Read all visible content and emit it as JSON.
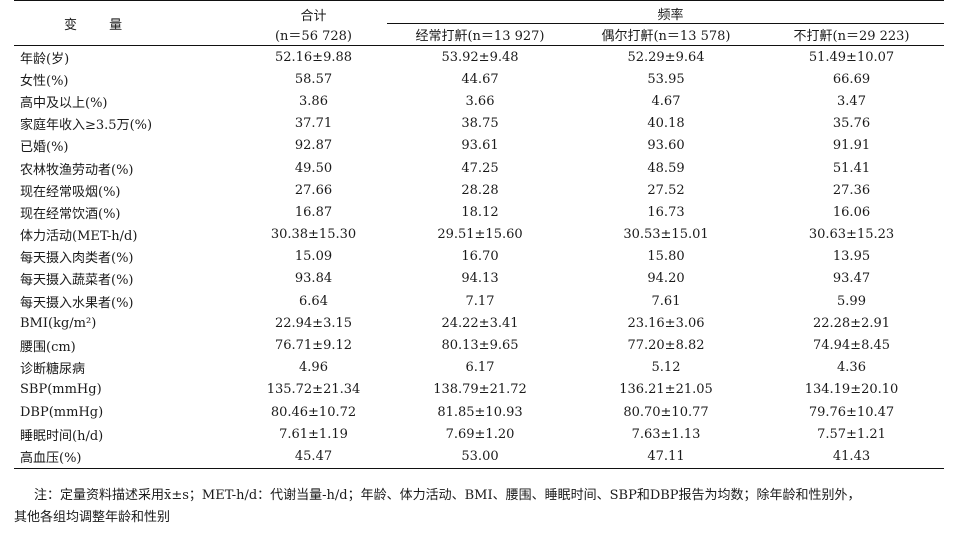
{
  "header": {
    "variable": "变 量",
    "total_title": "合计",
    "total_n": "(n＝56 728)",
    "frequency": "频率",
    "groups": [
      "经常打鼾(n＝13 927)",
      "偶尔打鼾(n＝13 578)",
      "不打鼾(n＝29 223)"
    ]
  },
  "rows": [
    {
      "label": "年龄(岁)",
      "values": [
        "52.16±9.88",
        "53.92±9.48",
        "52.29±9.64",
        "51.49±10.07"
      ]
    },
    {
      "label": "女性(%)",
      "values": [
        "58.57",
        "44.67",
        "53.95",
        "66.69"
      ]
    },
    {
      "label": "高中及以上(%)",
      "values": [
        "3.86",
        "3.66",
        "4.67",
        "3.47"
      ]
    },
    {
      "label": "家庭年收入≥3.5万(%)",
      "values": [
        "37.71",
        "38.75",
        "40.18",
        "35.76"
      ]
    },
    {
      "label": "已婚(%)",
      "values": [
        "92.87",
        "93.61",
        "93.60",
        "91.91"
      ]
    },
    {
      "label": "农林牧渔劳动者(%)",
      "values": [
        "49.50",
        "47.25",
        "48.59",
        "51.41"
      ]
    },
    {
      "label": "现在经常吸烟(%)",
      "values": [
        "27.66",
        "28.28",
        "27.52",
        "27.36"
      ]
    },
    {
      "label": "现在经常饮酒(%)",
      "values": [
        "16.87",
        "18.12",
        "16.73",
        "16.06"
      ]
    },
    {
      "label": "体力活动(MET-h/d)",
      "values": [
        "30.38±15.30",
        "29.51±15.60",
        "30.53±15.01",
        "30.63±15.23"
      ]
    },
    {
      "label": "每天摄入肉类者(%)",
      "values": [
        "15.09",
        "16.70",
        "15.80",
        "13.95"
      ]
    },
    {
      "label": "每天摄入蔬菜者(%)",
      "values": [
        "93.84",
        "94.13",
        "94.20",
        "93.47"
      ]
    },
    {
      "label": "每天摄入水果者(%)",
      "values": [
        "6.64",
        "7.17",
        "7.61",
        "5.99"
      ]
    },
    {
      "label": "BMI(kg/m²)",
      "values": [
        "22.94±3.15",
        "24.22±3.41",
        "23.16±3.06",
        "22.28±2.91"
      ]
    },
    {
      "label": "腰围(cm)",
      "values": [
        "76.71±9.12",
        "80.13±9.65",
        "77.20±8.82",
        "74.94±8.45"
      ]
    },
    {
      "label": "诊断糖尿病",
      "values": [
        "4.96",
        "6.17",
        "5.12",
        "4.36"
      ]
    },
    {
      "label": "SBP(mmHg)",
      "values": [
        "135.72±21.34",
        "138.79±21.72",
        "136.21±21.05",
        "134.19±20.10"
      ]
    },
    {
      "label": "DBP(mmHg)",
      "values": [
        "80.46±10.72",
        "81.85±10.93",
        "80.70±10.77",
        "79.76±10.47"
      ]
    },
    {
      "label": "睡眠时间(h/d)",
      "values": [
        "7.61±1.19",
        "7.69±1.20",
        "7.63±1.13",
        "7.57±1.21"
      ]
    },
    {
      "label": "高血压(%)",
      "values": [
        "45.47",
        "53.00",
        "47.11",
        "41.43"
      ]
    }
  ],
  "note": {
    "line1": "注：定量资料描述采用x̄±s；MET-h/d：代谢当量-h/d；年龄、体力活动、BMI、腰围、睡眠时间、SBP和DBP报告为均数；除年龄和性别外，",
    "line2": "其他各组均调整年龄和性别"
  }
}
